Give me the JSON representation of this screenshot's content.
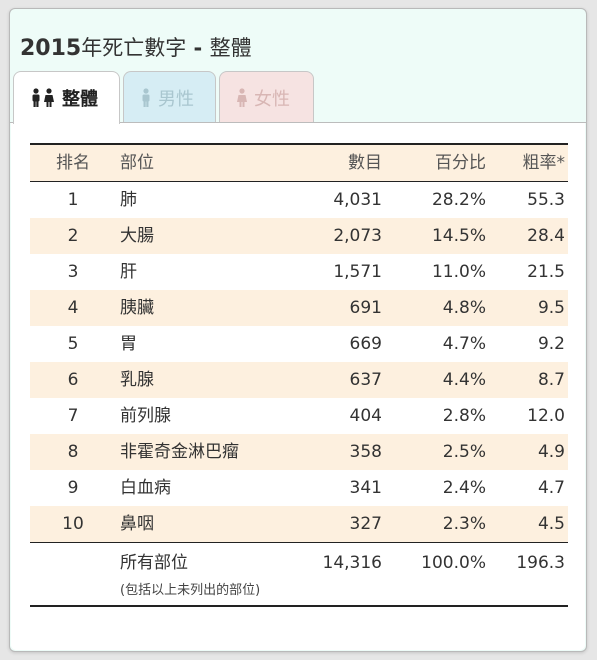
{
  "header": {
    "year": "2015",
    "title_mid": "年死亡數字",
    "dash": " - ",
    "title_end": "整體"
  },
  "tabs": [
    {
      "label": "整體",
      "icon": "couple-icon",
      "color": "#222222",
      "active": true
    },
    {
      "label": "男性",
      "icon": "male-icon",
      "color": "#a9c6cf",
      "active": false
    },
    {
      "label": "女性",
      "icon": "female-icon",
      "color": "#d8b6b4",
      "active": false
    }
  ],
  "table": {
    "columns": {
      "rank": "排名",
      "site": "部位",
      "count": "數目",
      "pct": "百分比",
      "rate": "粗率*"
    },
    "rows": [
      {
        "rank": "1",
        "site": "肺",
        "count": "4,031",
        "pct": "28.2%",
        "rate": "55.3"
      },
      {
        "rank": "2",
        "site": "大腸",
        "count": "2,073",
        "pct": "14.5%",
        "rate": "28.4"
      },
      {
        "rank": "3",
        "site": "肝",
        "count": "1,571",
        "pct": "11.0%",
        "rate": "21.5"
      },
      {
        "rank": "4",
        "site": "胰臟",
        "count": "691",
        "pct": "4.8%",
        "rate": "9.5"
      },
      {
        "rank": "5",
        "site": "胃",
        "count": "669",
        "pct": "4.7%",
        "rate": "9.2"
      },
      {
        "rank": "6",
        "site": "乳腺",
        "count": "637",
        "pct": "4.4%",
        "rate": "8.7"
      },
      {
        "rank": "7",
        "site": "前列腺",
        "count": "404",
        "pct": "2.8%",
        "rate": "12.0"
      },
      {
        "rank": "8",
        "site": "非霍奇金淋巴瘤",
        "count": "358",
        "pct": "2.5%",
        "rate": "4.9"
      },
      {
        "rank": "9",
        "site": "白血病",
        "count": "341",
        "pct": "2.4%",
        "rate": "4.7"
      },
      {
        "rank": "10",
        "site": "鼻咽",
        "count": "327",
        "pct": "2.3%",
        "rate": "4.5"
      }
    ],
    "total": {
      "site": "所有部位",
      "note": "(包括以上未列出的部位)",
      "count": "14,316",
      "pct": "100.0%",
      "rate": "196.3"
    }
  },
  "colors": {
    "header_tint": "#fdf0df",
    "card_background": "#eefcf8",
    "tab_male": "#d6edf4",
    "tab_female": "#f6e3e2"
  }
}
